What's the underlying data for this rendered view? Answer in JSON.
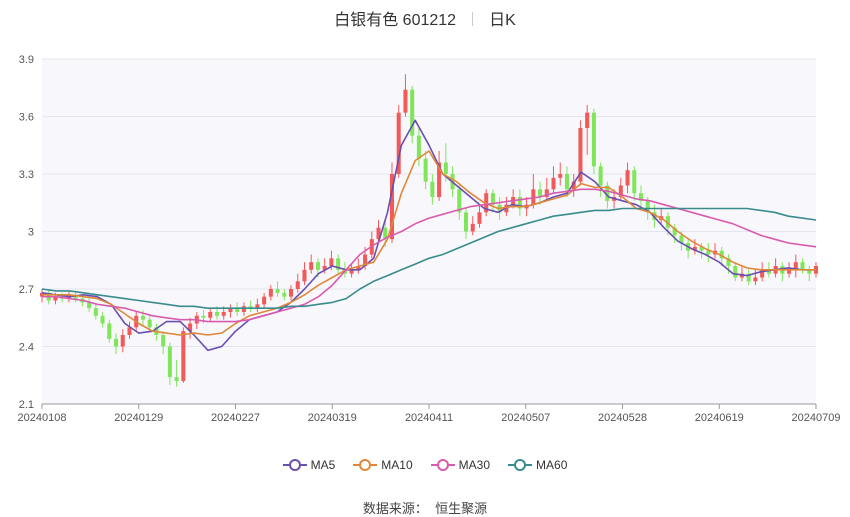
{
  "header": {
    "title": "白银有色 601212",
    "period": "日K"
  },
  "source": {
    "label": "数据来源：",
    "name": "恒生聚源"
  },
  "colors": {
    "up": "#f25a5a",
    "down": "#7fe65a",
    "ma5": "#6a4fb0",
    "ma10": "#e0883a",
    "ma30": "#d95bb0",
    "ma60": "#3a8c8c",
    "plot_bg": "#f8f8fc",
    "grid": "#e4e6ee"
  },
  "chart_data": {
    "type": "candlestick",
    "title": "白银有色 601212",
    "ylim": [
      2.1,
      3.9
    ],
    "y_ticks": [
      "2.1",
      "2.4",
      "2.7",
      "3",
      "3.3",
      "3.6",
      "3.9"
    ],
    "x_ticks": [
      "20240108",
      "20240129",
      "20240227",
      "20240319",
      "20240411",
      "20240507",
      "20240528",
      "20240619",
      "20240709"
    ],
    "legend": {
      "position": "bottom",
      "entries": [
        "MA5",
        "MA10",
        "MA30",
        "MA60"
      ]
    },
    "candles": [
      [
        2.66,
        2.68,
        2.7,
        2.63
      ],
      [
        2.68,
        2.64,
        2.7,
        2.62
      ],
      [
        2.64,
        2.66,
        2.68,
        2.62
      ],
      [
        2.66,
        2.65,
        2.68,
        2.63
      ],
      [
        2.65,
        2.67,
        2.69,
        2.63
      ],
      [
        2.67,
        2.65,
        2.69,
        2.63
      ],
      [
        2.65,
        2.63,
        2.67,
        2.61
      ],
      [
        2.63,
        2.6,
        2.65,
        2.58
      ],
      [
        2.6,
        2.56,
        2.62,
        2.54
      ],
      [
        2.56,
        2.52,
        2.58,
        2.5
      ],
      [
        2.52,
        2.44,
        2.54,
        2.42
      ],
      [
        2.44,
        2.4,
        2.47,
        2.36
      ],
      [
        2.4,
        2.46,
        2.49,
        2.37
      ],
      [
        2.46,
        2.5,
        2.53,
        2.44
      ],
      [
        2.5,
        2.56,
        2.58,
        2.48
      ],
      [
        2.56,
        2.54,
        2.59,
        2.51
      ],
      [
        2.54,
        2.5,
        2.56,
        2.48
      ],
      [
        2.5,
        2.46,
        2.52,
        2.43
      ],
      [
        2.46,
        2.4,
        2.48,
        2.36
      ],
      [
        2.4,
        2.24,
        2.42,
        2.2
      ],
      [
        2.24,
        2.22,
        2.33,
        2.19
      ],
      [
        2.22,
        2.48,
        2.5,
        2.21
      ],
      [
        2.48,
        2.52,
        2.55,
        2.44
      ],
      [
        2.52,
        2.56,
        2.58,
        2.49
      ],
      [
        2.56,
        2.55,
        2.59,
        2.52
      ],
      [
        2.55,
        2.58,
        2.6,
        2.53
      ],
      [
        2.58,
        2.56,
        2.61,
        2.54
      ],
      [
        2.56,
        2.58,
        2.61,
        2.54
      ],
      [
        2.58,
        2.6,
        2.62,
        2.55
      ],
      [
        2.6,
        2.58,
        2.63,
        2.56
      ],
      [
        2.58,
        2.61,
        2.63,
        2.56
      ],
      [
        2.61,
        2.6,
        2.64,
        2.58
      ],
      [
        2.6,
        2.62,
        2.65,
        2.58
      ],
      [
        2.62,
        2.66,
        2.68,
        2.6
      ],
      [
        2.66,
        2.7,
        2.72,
        2.64
      ],
      [
        2.7,
        2.68,
        2.74,
        2.66
      ],
      [
        2.68,
        2.66,
        2.7,
        2.64
      ],
      [
        2.66,
        2.7,
        2.72,
        2.64
      ],
      [
        2.7,
        2.74,
        2.78,
        2.68
      ],
      [
        2.74,
        2.8,
        2.84,
        2.72
      ],
      [
        2.8,
        2.84,
        2.88,
        2.78
      ],
      [
        2.84,
        2.8,
        2.86,
        2.76
      ],
      [
        2.8,
        2.82,
        2.86,
        2.78
      ],
      [
        2.82,
        2.86,
        2.9,
        2.8
      ],
      [
        2.86,
        2.8,
        2.88,
        2.78
      ],
      [
        2.8,
        2.78,
        2.84,
        2.76
      ],
      [
        2.78,
        2.8,
        2.83,
        2.76
      ],
      [
        2.8,
        2.82,
        2.86,
        2.78
      ],
      [
        2.82,
        2.88,
        2.92,
        2.8
      ],
      [
        2.88,
        2.96,
        3.0,
        2.86
      ],
      [
        2.96,
        3.02,
        3.06,
        2.94
      ],
      [
        3.02,
        2.96,
        3.06,
        2.92
      ],
      [
        2.96,
        3.3,
        3.36,
        2.94
      ],
      [
        3.3,
        3.62,
        3.66,
        3.28
      ],
      [
        3.62,
        3.74,
        3.82,
        3.6
      ],
      [
        3.74,
        3.5,
        3.76,
        3.46
      ],
      [
        3.5,
        3.38,
        3.54,
        3.34
      ],
      [
        3.38,
        3.26,
        3.42,
        3.22
      ],
      [
        3.26,
        3.18,
        3.3,
        3.14
      ],
      [
        3.18,
        3.36,
        3.42,
        3.16
      ],
      [
        3.36,
        3.3,
        3.46,
        3.26
      ],
      [
        3.3,
        3.22,
        3.34,
        3.18
      ],
      [
        3.22,
        3.1,
        3.24,
        3.06
      ],
      [
        3.1,
        3.0,
        3.12,
        2.96
      ],
      [
        3.0,
        3.04,
        3.08,
        2.98
      ],
      [
        3.04,
        3.1,
        3.14,
        3.02
      ],
      [
        3.1,
        3.2,
        3.22,
        3.08
      ],
      [
        3.2,
        3.14,
        3.22,
        3.1
      ],
      [
        3.14,
        3.1,
        3.18,
        3.06
      ],
      [
        3.1,
        3.14,
        3.18,
        3.08
      ],
      [
        3.14,
        3.18,
        3.22,
        3.12
      ],
      [
        3.18,
        3.12,
        3.22,
        3.08
      ],
      [
        3.12,
        3.14,
        3.18,
        3.08
      ],
      [
        3.14,
        3.22,
        3.3,
        3.12
      ],
      [
        3.22,
        3.18,
        3.26,
        3.14
      ],
      [
        3.18,
        3.22,
        3.28,
        3.16
      ],
      [
        3.22,
        3.28,
        3.34,
        3.2
      ],
      [
        3.28,
        3.3,
        3.36,
        3.24
      ],
      [
        3.3,
        3.22,
        3.34,
        3.18
      ],
      [
        3.22,
        3.26,
        3.3,
        3.18
      ],
      [
        3.26,
        3.54,
        3.58,
        3.24
      ],
      [
        3.54,
        3.62,
        3.66,
        3.4
      ],
      [
        3.62,
        3.34,
        3.64,
        3.3
      ],
      [
        3.34,
        3.24,
        3.36,
        3.18
      ],
      [
        3.24,
        3.16,
        3.26,
        3.12
      ],
      [
        3.16,
        3.18,
        3.22,
        3.12
      ],
      [
        3.18,
        3.24,
        3.28,
        3.16
      ],
      [
        3.24,
        3.32,
        3.36,
        3.2
      ],
      [
        3.32,
        3.2,
        3.34,
        3.16
      ],
      [
        3.2,
        3.16,
        3.24,
        3.12
      ],
      [
        3.16,
        3.1,
        3.18,
        3.06
      ],
      [
        3.1,
        3.06,
        3.14,
        3.02
      ],
      [
        3.06,
        3.08,
        3.12,
        3.04
      ],
      [
        3.08,
        3.02,
        3.1,
        2.98
      ],
      [
        3.02,
        2.98,
        3.04,
        2.94
      ],
      [
        2.98,
        2.94,
        3.0,
        2.9
      ],
      [
        2.94,
        2.9,
        2.96,
        2.86
      ],
      [
        2.9,
        2.92,
        2.96,
        2.88
      ],
      [
        2.92,
        2.9,
        2.94,
        2.86
      ],
      [
        2.9,
        2.88,
        2.94,
        2.84
      ],
      [
        2.88,
        2.9,
        2.94,
        2.86
      ],
      [
        2.9,
        2.86,
        2.92,
        2.82
      ],
      [
        2.86,
        2.82,
        2.88,
        2.78
      ],
      [
        2.82,
        2.76,
        2.84,
        2.74
      ],
      [
        2.76,
        2.78,
        2.82,
        2.74
      ],
      [
        2.78,
        2.74,
        2.8,
        2.72
      ],
      [
        2.74,
        2.76,
        2.8,
        2.72
      ],
      [
        2.76,
        2.8,
        2.84,
        2.74
      ],
      [
        2.8,
        2.78,
        2.84,
        2.76
      ],
      [
        2.78,
        2.82,
        2.86,
        2.76
      ],
      [
        2.82,
        2.78,
        2.84,
        2.74
      ],
      [
        2.78,
        2.8,
        2.84,
        2.76
      ],
      [
        2.8,
        2.84,
        2.88,
        2.76
      ],
      [
        2.84,
        2.8,
        2.86,
        2.78
      ],
      [
        2.8,
        2.78,
        2.82,
        2.74
      ],
      [
        2.78,
        2.82,
        2.84,
        2.76
      ]
    ],
    "series": [
      {
        "name": "MA5",
        "values": [
          2.68,
          2.67,
          2.66,
          2.67,
          2.66,
          2.62,
          2.52,
          2.47,
          2.48,
          2.53,
          2.53,
          2.46,
          2.38,
          2.4,
          2.48,
          2.54,
          2.56,
          2.58,
          2.63,
          2.7,
          2.78,
          2.82,
          2.8,
          2.8,
          2.86,
          3.1,
          3.45,
          3.58,
          3.45,
          3.3,
          3.24,
          3.18,
          3.12,
          3.1,
          3.14,
          3.13,
          3.15,
          3.18,
          3.2,
          3.31,
          3.26,
          3.18,
          3.16,
          3.14,
          3.1,
          3.02,
          2.95,
          2.91,
          2.88,
          2.84,
          2.78,
          2.77,
          2.79,
          2.8,
          2.81,
          2.8,
          2.8
        ]
      },
      {
        "name": "MA10",
        "values": [
          2.67,
          2.67,
          2.67,
          2.66,
          2.65,
          2.62,
          2.57,
          2.52,
          2.48,
          2.47,
          2.46,
          2.47,
          2.46,
          2.47,
          2.52,
          2.56,
          2.58,
          2.6,
          2.63,
          2.67,
          2.72,
          2.76,
          2.8,
          2.82,
          2.84,
          2.96,
          3.2,
          3.37,
          3.42,
          3.3,
          3.26,
          3.2,
          3.15,
          3.12,
          3.13,
          3.13,
          3.15,
          3.17,
          3.19,
          3.25,
          3.23,
          3.23,
          3.18,
          3.12,
          3.1,
          3.06,
          3.0,
          2.95,
          2.91,
          2.88,
          2.84,
          2.81,
          2.8,
          2.8,
          2.8,
          2.8,
          2.8
        ]
      },
      {
        "name": "MA30",
        "values": [
          2.66,
          2.66,
          2.65,
          2.64,
          2.62,
          2.61,
          2.6,
          2.58,
          2.56,
          2.55,
          2.54,
          2.54,
          2.53,
          2.53,
          2.53,
          2.54,
          2.56,
          2.58,
          2.6,
          2.62,
          2.66,
          2.72,
          2.8,
          2.88,
          2.93,
          2.97,
          3.0,
          3.04,
          3.07,
          3.09,
          3.11,
          3.13,
          3.14,
          3.15,
          3.16,
          3.17,
          3.18,
          3.2,
          3.21,
          3.22,
          3.22,
          3.21,
          3.19,
          3.17,
          3.16,
          3.14,
          3.12,
          3.1,
          3.08,
          3.06,
          3.04,
          3.01,
          2.98,
          2.96,
          2.94,
          2.93,
          2.92
        ]
      },
      {
        "name": "MA60",
        "values": [
          2.7,
          2.69,
          2.69,
          2.68,
          2.67,
          2.66,
          2.65,
          2.64,
          2.63,
          2.62,
          2.61,
          2.61,
          2.6,
          2.6,
          2.6,
          2.6,
          2.6,
          2.6,
          2.61,
          2.61,
          2.62,
          2.63,
          2.65,
          2.7,
          2.74,
          2.77,
          2.8,
          2.83,
          2.86,
          2.88,
          2.91,
          2.94,
          2.97,
          3.0,
          3.02,
          3.04,
          3.06,
          3.08,
          3.09,
          3.1,
          3.11,
          3.11,
          3.12,
          3.12,
          3.12,
          3.12,
          3.12,
          3.12,
          3.12,
          3.12,
          3.12,
          3.12,
          3.11,
          3.1,
          3.08,
          3.07,
          3.06
        ]
      }
    ]
  }
}
